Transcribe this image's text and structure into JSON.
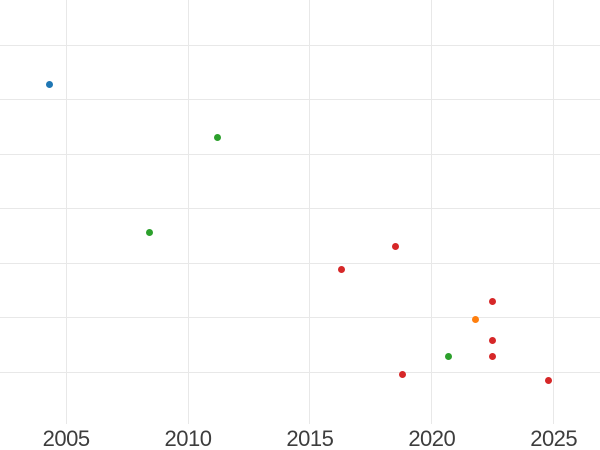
{
  "chart_data": {
    "type": "scatter",
    "title": "",
    "xlabel": "",
    "ylabel": "",
    "grid": true,
    "legend": false,
    "x_ticks": [
      2005,
      2010,
      2015,
      2020,
      2025
    ],
    "x_tick_labels": [
      "2005",
      "2010",
      "2015",
      "2020",
      "2025"
    ],
    "y_gridlines": [
      1,
      2,
      3,
      4,
      5,
      6,
      7
    ],
    "axes": {
      "x": {
        "min": 2002.29,
        "max": 2026.9
      },
      "y": {
        "min": -0.43,
        "max": 7.83
      }
    },
    "y_axis_note": "y-axis has no visible tick labels in the image; y values are expressed in gridline units (1 unit = one gridline spacing, 0 = one spacing below the lowest drawn gridline)",
    "series": [
      {
        "name": "blue",
        "color": "#1f77b4",
        "points": [
          {
            "x": 2004.3,
            "y": 6.28
          }
        ]
      },
      {
        "name": "green",
        "color": "#2ca02c",
        "points": [
          {
            "x": 2008.4,
            "y": 3.56
          },
          {
            "x": 2011.2,
            "y": 5.31
          },
          {
            "x": 2020.7,
            "y": 1.29
          }
        ]
      },
      {
        "name": "orange",
        "color": "#ff7f0e",
        "points": [
          {
            "x": 2021.8,
            "y": 1.97
          }
        ]
      },
      {
        "name": "red",
        "color": "#d62728",
        "points": [
          {
            "x": 2016.3,
            "y": 2.89
          },
          {
            "x": 2018.5,
            "y": 3.3
          },
          {
            "x": 2018.8,
            "y": 0.95
          },
          {
            "x": 2022.5,
            "y": 2.29
          },
          {
            "x": 2022.5,
            "y": 1.58
          },
          {
            "x": 2022.5,
            "y": 1.29
          },
          {
            "x": 2024.8,
            "y": 0.85
          }
        ]
      }
    ],
    "style": {
      "background": "#ffffff",
      "grid_color": "#e8e8e8",
      "tick_label_color": "#3d3d3d",
      "marker_diameter_px": 7
    }
  }
}
